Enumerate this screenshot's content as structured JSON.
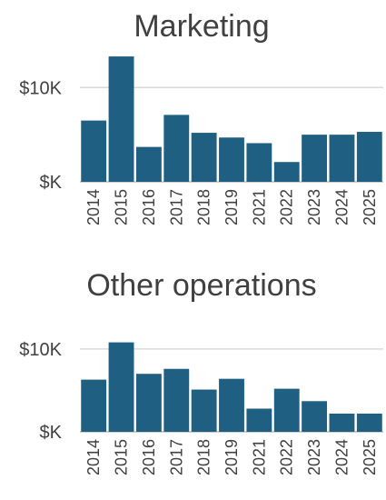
{
  "chart_data": [
    {
      "type": "bar",
      "title": "Marketing",
      "categories": [
        "2014",
        "2015",
        "2016",
        "2017",
        "2018",
        "2019",
        "2021",
        "2022",
        "2023",
        "2024",
        "2025"
      ],
      "values": [
        6.5,
        13.3,
        3.7,
        7.1,
        5.2,
        4.7,
        4.1,
        2.1,
        5.0,
        5.0,
        5.3
      ],
      "yticks": [
        {
          "value": 0,
          "label": "$K"
        },
        {
          "value": 10,
          "label": "$10K"
        }
      ],
      "ylim": [
        0,
        13.5
      ],
      "grid": true,
      "bar_color": "#1f5f82"
    },
    {
      "type": "bar",
      "title": "Other operations",
      "categories": [
        "2014",
        "2015",
        "2016",
        "2017",
        "2018",
        "2019",
        "2021",
        "2022",
        "2023",
        "2024",
        "2025"
      ],
      "values": [
        6.3,
        10.8,
        7.0,
        7.6,
        5.1,
        6.4,
        2.8,
        5.2,
        3.7,
        2.2,
        2.2
      ],
      "yticks": [
        {
          "value": 0,
          "label": "$K"
        },
        {
          "value": 10,
          "label": "$10K"
        }
      ],
      "ylim": [
        0,
        13.5
      ],
      "grid": true,
      "bar_color": "#1f5f82"
    }
  ]
}
